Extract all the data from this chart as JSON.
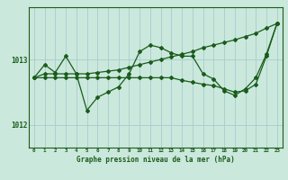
{
  "bg_color": "#cbe8dd",
  "plot_bg_color": "#cbe8dd",
  "grid_color": "#a8cccc",
  "line_color": "#1a5c1a",
  "marker_color": "#1a5c1a",
  "xlabel": "Graphe pression niveau de la mer (hPa)",
  "yticks": [
    1012,
    1013
  ],
  "xticks": [
    0,
    1,
    2,
    3,
    4,
    5,
    6,
    7,
    8,
    9,
    10,
    11,
    12,
    13,
    14,
    15,
    16,
    17,
    18,
    19,
    20,
    21,
    22,
    23
  ],
  "xlim": [
    -0.5,
    23.5
  ],
  "ylim": [
    1011.65,
    1013.8
  ],
  "curve_jagged": [
    1012.72,
    1012.92,
    1012.8,
    1013.05,
    1012.78,
    1012.22,
    1012.42,
    1012.5,
    1012.58,
    1012.78,
    1013.12,
    1013.22,
    1013.18,
    1013.1,
    1013.05,
    1013.05,
    1012.78,
    1012.7,
    1012.52,
    1012.45,
    1012.55,
    1012.72,
    1013.08,
    1013.55
  ],
  "curve_upper": [
    1012.72,
    1012.78,
    1012.78,
    1012.78,
    1012.78,
    1012.78,
    1012.8,
    1012.82,
    1012.84,
    1012.88,
    1012.92,
    1012.96,
    1013.0,
    1013.04,
    1013.08,
    1013.12,
    1013.18,
    1013.22,
    1013.26,
    1013.3,
    1013.35,
    1013.4,
    1013.48,
    1013.55
  ],
  "curve_lower": [
    1012.72,
    1012.72,
    1012.72,
    1012.72,
    1012.72,
    1012.72,
    1012.72,
    1012.72,
    1012.72,
    1012.72,
    1012.72,
    1012.72,
    1012.72,
    1012.72,
    1012.68,
    1012.65,
    1012.62,
    1012.6,
    1012.55,
    1012.5,
    1012.52,
    1012.62,
    1013.05,
    1013.55
  ]
}
